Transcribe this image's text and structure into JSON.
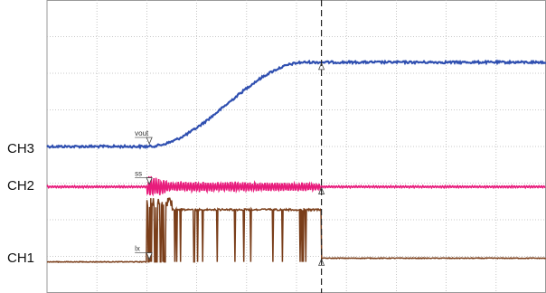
{
  "chart_data": {
    "type": "line",
    "title": "",
    "xlabel": "",
    "ylabel": "",
    "grid": true,
    "grid_divisions": {
      "x": 10,
      "y": 8
    },
    "trigger_cursor_division": 5.5,
    "channels": [
      {
        "name": "CH3",
        "probe_label": "vout",
        "color": "#2f4fb0",
        "waveform": "soft-start ramp",
        "baseline_division": 4.0,
        "ramp_start_division": 2.0,
        "ramp_end_division": 5.2,
        "final_level_division": 6.3
      },
      {
        "name": "CH2",
        "probe_label": "ss",
        "color": "#e81c7c",
        "waveform": "ringing then switching",
        "level_division": 2.9
      },
      {
        "name": "CH1",
        "probe_label": "lx",
        "color": "#7a3e1a",
        "waveform": "switching pulses",
        "low_division": 0.85,
        "high_division": 2.3,
        "burst_start_division": 2.0,
        "burst_end_division": 5.5,
        "post_level_division": 0.95
      }
    ]
  }
}
